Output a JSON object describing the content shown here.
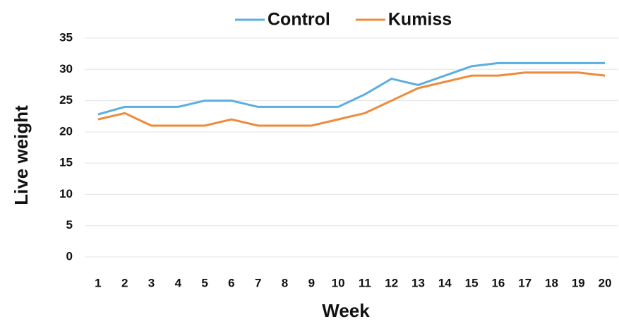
{
  "chart_data": {
    "type": "line",
    "x_label": "Week",
    "y_label": "Live weight",
    "categories": [
      "1",
      "2",
      "3",
      "4",
      "5",
      "6",
      "7",
      "8",
      "9",
      "10",
      "11",
      "12",
      "13",
      "14",
      "15",
      "16",
      "17",
      "18",
      "19",
      "20"
    ],
    "series": [
      {
        "name": "Control",
        "color": "#5aaee0",
        "values": [
          22.8,
          24,
          24,
          24,
          25,
          25,
          24,
          24,
          24,
          24,
          26,
          28.5,
          27.5,
          29,
          30.5,
          31,
          31,
          31,
          31,
          31
        ]
      },
      {
        "name": "Kumiss",
        "color": "#f08a3a",
        "values": [
          22,
          23,
          21,
          21,
          21,
          22,
          21,
          21,
          21,
          22,
          23,
          25,
          27,
          28,
          29,
          29,
          29.5,
          29.5,
          29.5,
          29
        ]
      }
    ],
    "ylim": [
      0,
      35
    ],
    "yticks": [
      0,
      5,
      10,
      15,
      20,
      25,
      30,
      35
    ],
    "grid": true,
    "legend": "top"
  }
}
